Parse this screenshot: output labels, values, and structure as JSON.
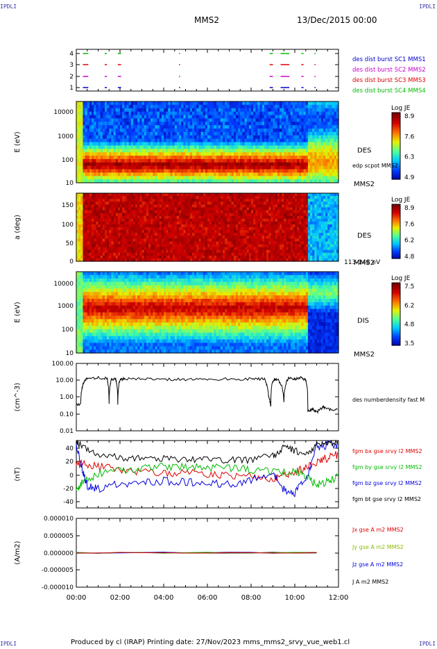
{
  "header": {
    "corner_left": "IPDLI",
    "corner_right": "IPDLI",
    "spacecraft": "MMS2",
    "date": "13/Dec/2015 00:00",
    "footer_left": "IPDLI",
    "footer_right": "IPDLI",
    "footer": "Produced by cl (IRAP)   Printing date: 27/Nov/2023   mms_mms2_srvy_vue_web1.cl"
  },
  "colors": {
    "mms1": "#0000cc",
    "mms2": "#cc00cc",
    "mms3": "#dd0000",
    "mms4": "#00bb00",
    "bx": "#dd0000",
    "by": "#00bb00",
    "bz": "#0000dd",
    "bt": "#000000"
  },
  "chart_data": [
    {
      "type": "scatter",
      "panel": "burst",
      "ytick_labels": [
        "4",
        "3",
        "2",
        "1"
      ],
      "ylim": [
        0.5,
        4.5
      ],
      "legend": [
        "des dist burst SC1 MMS1",
        "des dist burst SC2 MMS2",
        "des dist burst SC3 MMS3",
        "des dist burst SC4 MMS4"
      ],
      "intervals_hours": [
        [
          0.3,
          0.55
        ],
        [
          1.3,
          1.4
        ],
        [
          1.9,
          2.05
        ],
        [
          4.7,
          4.75
        ],
        [
          8.85,
          9.0
        ],
        [
          9.35,
          9.75
        ],
        [
          10.3,
          10.4
        ],
        [
          10.9,
          10.95
        ]
      ]
    },
    {
      "type": "heatmap",
      "panel": "des-energy",
      "ylabel": "E (eV)",
      "ytick_labels": [
        "10000",
        "1000",
        "100",
        "10"
      ],
      "ylim": [
        10,
        30000
      ],
      "scale": "log",
      "label": "DES",
      "sublabel": "MMS2",
      "overlay": "edp scpot MMS2",
      "colorbar_title": "Log JE",
      "colorbar_ticks": [
        "8.9",
        "7.6",
        "6.3",
        "4.9"
      ]
    },
    {
      "type": "heatmap",
      "panel": "des-pitch",
      "ylabel": "a (deg)",
      "ytick_labels": [
        "150",
        "100",
        "50",
        "0"
      ],
      "ylim": [
        0,
        180
      ],
      "label": "DES",
      "sublabel": "MMS2",
      "energy_range": "113-148 eV",
      "colorbar_title": "Log JE",
      "colorbar_ticks": [
        "8.9",
        "7.6",
        "6.2",
        "4.8"
      ]
    },
    {
      "type": "heatmap",
      "panel": "dis-energy",
      "ylabel": "E (eV)",
      "ytick_labels": [
        "10000",
        "1000",
        "100",
        "10"
      ],
      "ylim": [
        10,
        30000
      ],
      "scale": "log",
      "label": "DIS",
      "sublabel": "MMS2",
      "colorbar_title": "Log JE",
      "colorbar_ticks": [
        "7.5",
        "6.2",
        "4.8",
        "3.5"
      ]
    },
    {
      "type": "line",
      "panel": "density",
      "ylabel": "(cm^-3)",
      "ytick_labels": [
        "100.00",
        "10.00",
        "1.00",
        "0.10",
        "0.01"
      ],
      "ylim": [
        0.01,
        100
      ],
      "scale": "log",
      "series": [
        {
          "name": "des numberdensity fast M",
          "color": "#000000",
          "x": [
            0,
            0.2,
            0.35,
            0.5,
            1.0,
            1.4,
            1.5,
            1.6,
            1.8,
            1.9,
            2.0,
            2.2,
            3.0,
            4.0,
            5.0,
            6.0,
            7.0,
            8.0,
            8.6,
            8.8,
            8.9,
            9.0,
            9.2,
            9.5,
            9.7,
            10.0,
            10.3,
            10.5,
            10.6,
            10.8,
            11.0,
            11.3,
            11.6,
            12.0
          ],
          "y": [
            0.35,
            0.4,
            8.0,
            13,
            14,
            13,
            0.4,
            10,
            12,
            0.35,
            11,
            12,
            12,
            11.5,
            11,
            11,
            12,
            12,
            12,
            1.0,
            0.3,
            10,
            12,
            0.5,
            13,
            12,
            14,
            10,
            0.15,
            0.2,
            0.12,
            0.25,
            0.18,
            0.2
          ]
        }
      ]
    },
    {
      "type": "line",
      "panel": "fgm",
      "ylabel": "(nT)",
      "ytick_labels": [
        "40",
        "20",
        "0",
        "-20",
        "-40"
      ],
      "ylim": [
        -47,
        50
      ],
      "series": [
        {
          "name": "fgm bx gse srvy l2 MMS2",
          "color": "#dd0000",
          "x": [
            0,
            0.3,
            1,
            2,
            3,
            4,
            5,
            6,
            7,
            8,
            9,
            9.5,
            10,
            10.5,
            11,
            11.5,
            12
          ],
          "y": [
            15,
            18,
            12,
            8,
            5,
            4,
            3,
            2,
            0,
            -2,
            -5,
            0,
            5,
            10,
            20,
            25,
            30
          ]
        },
        {
          "name": "fgm by gse srvy l2 MMS2",
          "color": "#00bb00",
          "x": [
            0,
            0.3,
            1,
            2,
            3,
            4,
            5,
            6,
            7,
            8,
            9,
            10,
            10.5,
            11,
            11.5,
            12
          ],
          "y": [
            -20,
            -10,
            3,
            8,
            10,
            12,
            12,
            11,
            10,
            8,
            5,
            5,
            0,
            -15,
            -8,
            -2
          ]
        },
        {
          "name": "fgm bz gse srvy l2 MMS2",
          "color": "#0000dd",
          "x": [
            0,
            0.3,
            0.5,
            1,
            2,
            3,
            4,
            5,
            6,
            7,
            8,
            9,
            9.5,
            10,
            10.5,
            11,
            11.5,
            12
          ],
          "y": [
            45,
            5,
            -15,
            -20,
            -12,
            -10,
            -8,
            -10,
            -12,
            -13,
            -8,
            0,
            -20,
            -25,
            -5,
            40,
            44,
            45
          ]
        },
        {
          "name": "fgm bt gse srvy l2 MMS2",
          "color": "#000000",
          "x": [
            0,
            0.3,
            1,
            2,
            3,
            4,
            5,
            6,
            7,
            8,
            9,
            9.5,
            10,
            10.5,
            11,
            11.5,
            12
          ],
          "y": [
            48,
            40,
            30,
            25,
            25,
            24,
            23,
            22,
            22,
            22,
            28,
            40,
            35,
            30,
            44,
            47,
            48
          ]
        }
      ]
    },
    {
      "type": "line",
      "panel": "current",
      "ylabel": "(A/m2)",
      "ytick_labels": [
        "0.000010",
        "0.000005",
        "0.000000",
        "-0.000005",
        "-0.000010"
      ],
      "ylim": [
        -1e-05,
        1e-05
      ],
      "legend": [
        "Jx gse A m2 MMS2",
        "Jy gse A m2 MMS2",
        "Jz gse A m2 MMS2",
        "J A m2 MMS2"
      ],
      "value_all": 0
    }
  ],
  "xaxis": {
    "tick_labels": [
      "00:00",
      "02:00",
      "04:00",
      "06:00",
      "08:00",
      "10:00",
      "12:00"
    ],
    "xlim_hours": [
      0,
      12
    ]
  }
}
